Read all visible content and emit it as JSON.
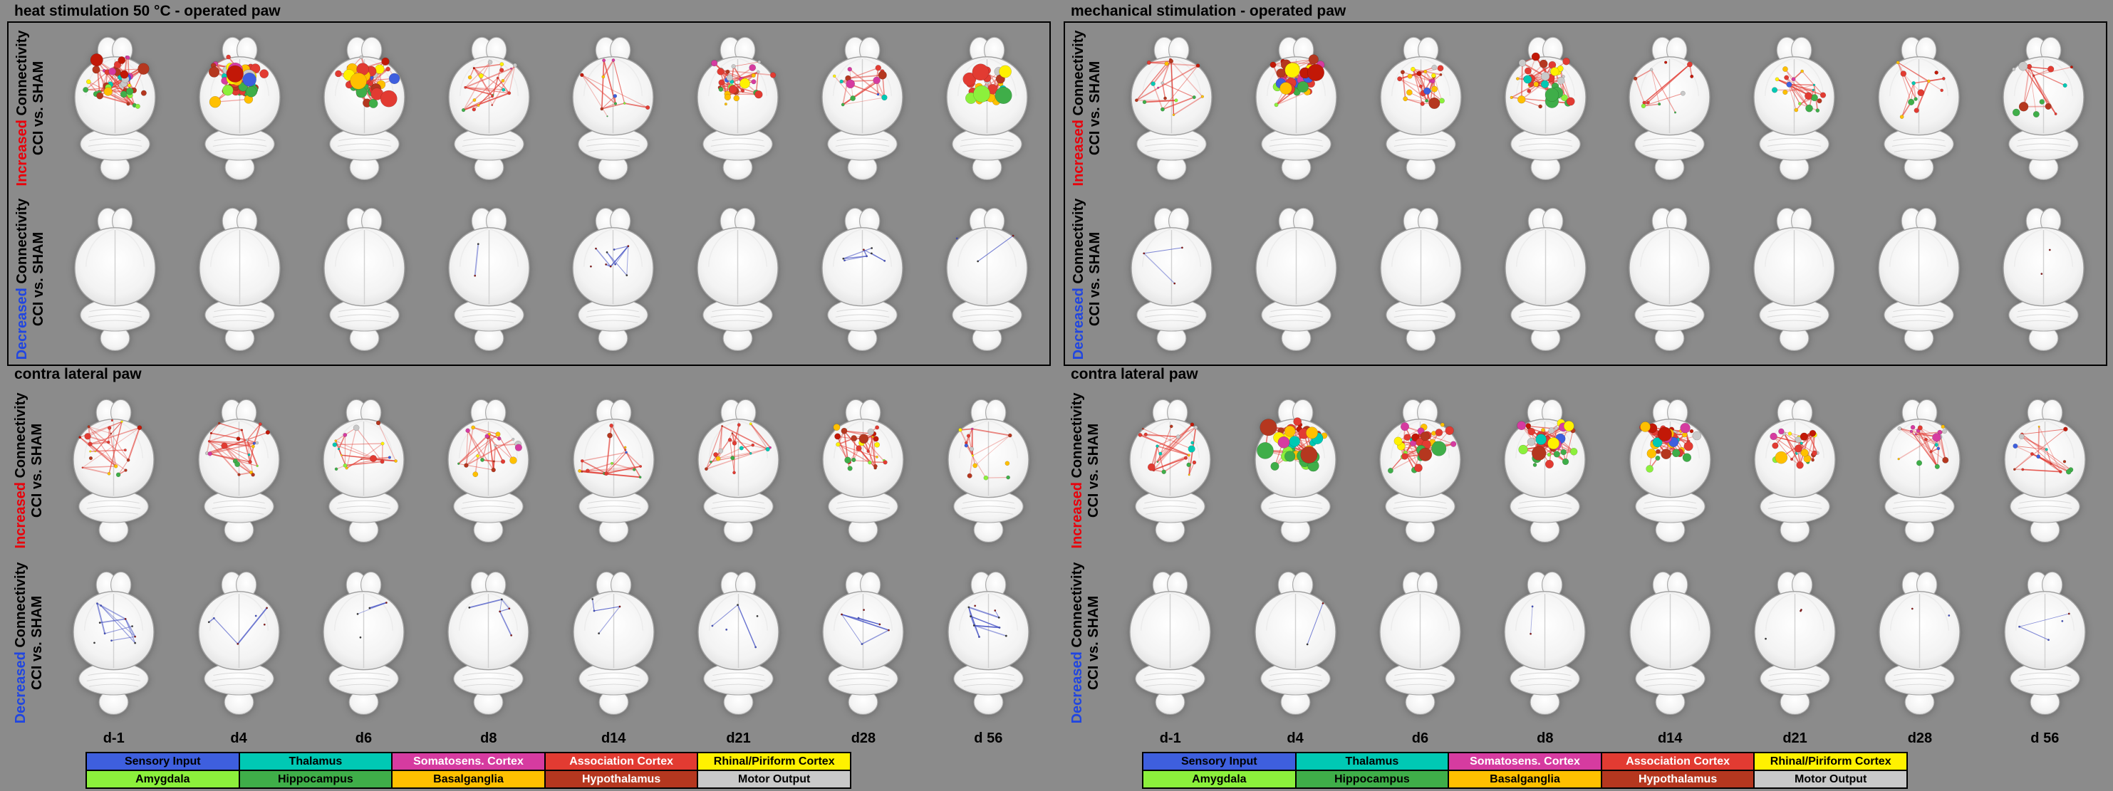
{
  "figure": {
    "background": "#8b8b8b"
  },
  "row_labels": {
    "increased": {
      "word": "Increased",
      "color": "#e8000b",
      "rest": "Connectivity",
      "line2": "CCI vs. SHAM"
    },
    "decreased": {
      "word": "Decreased",
      "color": "#2146e0",
      "rest": "Connectivity",
      "line2": "CCI vs. SHAM"
    }
  },
  "timepoints": [
    "d-1",
    "d4",
    "d6",
    "d8",
    "d14",
    "d21",
    "d28",
    "d 56"
  ],
  "legend": [
    {
      "label": "Sensory Input",
      "bg": "#3e5fde",
      "fg": "#000000"
    },
    {
      "label": "Thalamus",
      "bg": "#00c9b4",
      "fg": "#000000"
    },
    {
      "label": "Somatosens. Cortex",
      "bg": "#d63ba0",
      "fg": "#ffffff"
    },
    {
      "label": "Association Cortex",
      "bg": "#e23b32",
      "fg": "#ffffff"
    },
    {
      "label": "Rhinal/Piriform Cortex",
      "bg": "#fff100",
      "fg": "#000000"
    },
    {
      "label": "Amygdala",
      "bg": "#8cf03c",
      "fg": "#000000"
    },
    {
      "label": "Hippocampus",
      "bg": "#3fae49",
      "fg": "#000000"
    },
    {
      "label": "Basalganglia",
      "bg": "#ffc000",
      "fg": "#000000"
    },
    {
      "label": "Hypothalamus",
      "bg": "#b5371f",
      "fg": "#ffffff"
    },
    {
      "label": "Motor Output",
      "bg": "#c9c9c9",
      "fg": "#000000"
    }
  ],
  "palettes": {
    "top": [
      "#e23b32",
      "#e23b32",
      "#c21807",
      "#d63ba0",
      "#ffc000",
      "#fff100",
      "#b5371f",
      "#c9c9c9"
    ],
    "mid": [
      "#00c9b4",
      "#d63ba0",
      "#e23b32",
      "#3e5fde",
      "#fff100",
      "#ffc000",
      "#c9c9c9",
      "#e23b32",
      "#00c9b4"
    ],
    "bottom": [
      "#3fae49",
      "#8cf03c",
      "#3fae49",
      "#ffc000",
      "#b5371f",
      "#e23b32"
    ],
    "decreased": [
      "#3a3a3a",
      "#4653c5",
      "#8b1a1a"
    ]
  },
  "edge_colors": {
    "increased": "#e23b32",
    "decreased": "#4653c5"
  },
  "panels": [
    {
      "title": "heat stimulation 50 °C - operated paw",
      "boxed": true,
      "rows": [
        {
          "dir": "increased",
          "cells": [
            {
              "n": 45,
              "e": 70,
              "s": 1.0,
              "sp": 0.5
            },
            {
              "n": 55,
              "e": 95,
              "s": 1.5,
              "sp": 0.45
            },
            {
              "n": 50,
              "e": 85,
              "s": 1.4,
              "sp": 0.45
            },
            {
              "n": 20,
              "e": 30,
              "s": 0.6,
              "sp": 0.8
            },
            {
              "n": 10,
              "e": 16,
              "s": 0.5,
              "sp": 1.0
            },
            {
              "n": 30,
              "e": 45,
              "s": 0.9,
              "sp": 0.55
            },
            {
              "n": 14,
              "e": 18,
              "s": 0.8,
              "sp": 0.8
            },
            {
              "n": 28,
              "e": 40,
              "s": 1.5,
              "sp": 0.5
            }
          ]
        },
        {
          "dir": "decreased",
          "cells": [
            {
              "n": 0,
              "e": 0,
              "s": 0,
              "sp": 0
            },
            {
              "n": 0,
              "e": 0,
              "s": 0,
              "sp": 0
            },
            {
              "n": 0,
              "e": 0,
              "s": 0,
              "sp": 0
            },
            {
              "n": 2,
              "e": 1,
              "s": 0.4,
              "sp": 0.9
            },
            {
              "n": 9,
              "e": 11,
              "s": 0.4,
              "sp": 0.7
            },
            {
              "n": 0,
              "e": 0,
              "s": 0,
              "sp": 0
            },
            {
              "n": 7,
              "e": 8,
              "s": 0.4,
              "sp": 0.6
            },
            {
              "n": 3,
              "e": 3,
              "s": 0.4,
              "sp": 0.8
            }
          ]
        }
      ]
    },
    {
      "title": "contra lateral paw",
      "boxed": false,
      "rows": [
        {
          "dir": "increased",
          "cells": [
            {
              "n": 20,
              "e": 28,
              "s": 0.55,
              "sp": 0.9
            },
            {
              "n": 22,
              "e": 32,
              "s": 0.6,
              "sp": 0.85
            },
            {
              "n": 16,
              "e": 24,
              "s": 0.55,
              "sp": 0.9
            },
            {
              "n": 20,
              "e": 28,
              "s": 0.6,
              "sp": 0.85
            },
            {
              "n": 15,
              "e": 22,
              "s": 0.55,
              "sp": 0.9
            },
            {
              "n": 18,
              "e": 26,
              "s": 0.6,
              "sp": 0.85
            },
            {
              "n": 26,
              "e": 36,
              "s": 0.85,
              "sp": 0.7
            },
            {
              "n": 13,
              "e": 18,
              "s": 0.6,
              "sp": 0.9
            }
          ]
        },
        {
          "dir": "decreased",
          "cells": [
            {
              "n": 10,
              "e": 12,
              "s": 0.45,
              "sp": 0.7
            },
            {
              "n": 6,
              "e": 7,
              "s": 0.4,
              "sp": 0.8
            },
            {
              "n": 4,
              "e": 4,
              "s": 0.4,
              "sp": 0.8
            },
            {
              "n": 5,
              "e": 6,
              "s": 0.4,
              "sp": 0.8
            },
            {
              "n": 4,
              "e": 5,
              "s": 0.4,
              "sp": 0.8
            },
            {
              "n": 5,
              "e": 6,
              "s": 0.4,
              "sp": 0.8
            },
            {
              "n": 6,
              "e": 8,
              "s": 0.4,
              "sp": 0.7
            },
            {
              "n": 9,
              "e": 12,
              "s": 0.5,
              "sp": 0.6
            }
          ]
        }
      ]
    },
    {
      "title": "mechanical stimulation - operated paw",
      "boxed": true,
      "rows": [
        {
          "dir": "increased",
          "cells": [
            {
              "n": 16,
              "e": 24,
              "s": 0.55,
              "sp": 0.95
            },
            {
              "n": 45,
              "e": 75,
              "s": 1.5,
              "sp": 0.45
            },
            {
              "n": 26,
              "e": 38,
              "s": 0.9,
              "sp": 0.6
            },
            {
              "n": 40,
              "e": 60,
              "s": 1.1,
              "sp": 0.5
            },
            {
              "n": 12,
              "e": 16,
              "s": 0.55,
              "sp": 0.95
            },
            {
              "n": 18,
              "e": 26,
              "s": 0.7,
              "sp": 0.8
            },
            {
              "n": 12,
              "e": 16,
              "s": 0.6,
              "sp": 0.9
            },
            {
              "n": 13,
              "e": 18,
              "s": 0.9,
              "sp": 0.8
            }
          ]
        },
        {
          "dir": "decreased",
          "cells": [
            {
              "n": 3,
              "e": 2,
              "s": 0.4,
              "sp": 0.8
            },
            {
              "n": 0,
              "e": 0,
              "s": 0,
              "sp": 0
            },
            {
              "n": 0,
              "e": 0,
              "s": 0,
              "sp": 0
            },
            {
              "n": 0,
              "e": 0,
              "s": 0,
              "sp": 0
            },
            {
              "n": 0,
              "e": 0,
              "s": 0,
              "sp": 0
            },
            {
              "n": 0,
              "e": 0,
              "s": 0,
              "sp": 0
            },
            {
              "n": 0,
              "e": 0,
              "s": 0,
              "sp": 0
            },
            {
              "n": 2,
              "e": 1,
              "s": 0.4,
              "sp": 0.8
            }
          ]
        }
      ]
    },
    {
      "title": "contra lateral paw",
      "boxed": false,
      "rows": [
        {
          "dir": "increased",
          "cells": [
            {
              "n": 20,
              "e": 28,
              "s": 0.6,
              "sp": 0.85
            },
            {
              "n": 45,
              "e": 70,
              "s": 1.5,
              "sp": 0.45
            },
            {
              "n": 38,
              "e": 58,
              "s": 1.2,
              "sp": 0.5
            },
            {
              "n": 40,
              "e": 60,
              "s": 1.2,
              "sp": 0.5
            },
            {
              "n": 38,
              "e": 55,
              "s": 1.3,
              "sp": 0.5
            },
            {
              "n": 26,
              "e": 38,
              "s": 1.0,
              "sp": 0.6
            },
            {
              "n": 22,
              "e": 30,
              "s": 0.8,
              "sp": 0.7
            },
            {
              "n": 15,
              "e": 22,
              "s": 0.7,
              "sp": 0.85
            }
          ]
        },
        {
          "dir": "decreased",
          "cells": [
            {
              "n": 0,
              "e": 0,
              "s": 0,
              "sp": 0
            },
            {
              "n": 2,
              "e": 1,
              "s": 0.4,
              "sp": 0.8
            },
            {
              "n": 0,
              "e": 0,
              "s": 0,
              "sp": 0
            },
            {
              "n": 2,
              "e": 2,
              "s": 0.4,
              "sp": 0.8
            },
            {
              "n": 0,
              "e": 0,
              "s": 0,
              "sp": 0
            },
            {
              "n": 3,
              "e": 2,
              "s": 0.4,
              "sp": 0.8
            },
            {
              "n": 2,
              "e": 2,
              "s": 0.4,
              "sp": 0.8
            },
            {
              "n": 4,
              "e": 4,
              "s": 0.4,
              "sp": 0.7
            }
          ]
        }
      ]
    }
  ]
}
